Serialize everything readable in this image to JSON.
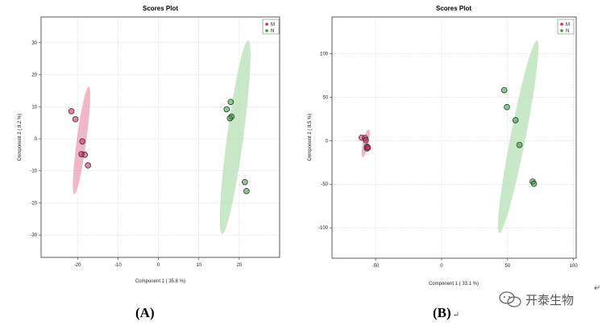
{
  "chart_data": [
    {
      "type": "scatter",
      "title": "Scores Plot",
      "xlabel": "Component 1 ( 35.8 %)",
      "ylabel": "Component 2 ( 8.2 %)",
      "xlim": [
        -29,
        30
      ],
      "ylim": [
        -37,
        38
      ],
      "xticks": [
        -20,
        -10,
        0,
        10,
        20
      ],
      "yticks": [
        -30,
        -20,
        -10,
        0,
        10,
        20,
        30
      ],
      "grid": true,
      "legend": {
        "position": "top-right",
        "entries": [
          "M",
          "N"
        ]
      },
      "series": [
        {
          "name": "M",
          "color": "#d81b60",
          "ellipse_color": "#e8a0b3",
          "x": [
            -21.5,
            -20.5,
            -18.8,
            -19.0,
            -18.2,
            -17.4
          ],
          "y": [
            8.6,
            6.1,
            -0.8,
            -4.8,
            -5.0,
            -8.3
          ],
          "ellipse": {
            "center": [
              -19.0,
              -0.5
            ],
            "rx": 17.5,
            "ry": 1.3,
            "angle": -73.4
          }
        },
        {
          "name": "N",
          "color": "#2e9a3a",
          "ellipse_color": "#b5e0b5",
          "x": [
            17.9,
            16.9,
            18.1,
            17.7,
            21.4,
            21.8
          ],
          "y": [
            11.5,
            9.2,
            6.9,
            6.4,
            -13.5,
            -16.3
          ],
          "ellipse": {
            "center": [
              19.0,
              0.5
            ],
            "rx": 31.5,
            "ry": 2.2,
            "angle": -73.4
          }
        }
      ]
    },
    {
      "type": "scatter",
      "title": "Scores Plot",
      "xlabel": "Component 1 ( 33.1 %)",
      "ylabel": "Component 2 ( 8.5 %)",
      "xlim": [
        -83,
        102
      ],
      "ylim": [
        -135,
        142
      ],
      "xticks": [
        -50,
        0,
        50,
        100
      ],
      "yticks": [
        -100,
        -50,
        0,
        50,
        100
      ],
      "grid": true,
      "legend": {
        "position": "top-right",
        "entries": [
          "M",
          "N"
        ]
      },
      "series": [
        {
          "name": "M",
          "color": "#d81b60",
          "ellipse_color": "#e8a0b3",
          "x": [
            -60.5,
            -58.0,
            -57.5,
            -56.5,
            -56.5,
            -55.8
          ],
          "y": [
            3.5,
            3.0,
            0.5,
            -7.0,
            -9.0,
            -8.0
          ],
          "ellipse": {
            "center": [
              -57.5,
              -3.0
            ],
            "rx": 17,
            "ry": 2.5,
            "angle": -70
          }
        },
        {
          "name": "N",
          "color": "#2e9a3a",
          "ellipse_color": "#b5e0b5",
          "x": [
            47.5,
            49.5,
            56.0,
            59.0,
            69.0,
            70.0
          ],
          "y": [
            58.0,
            38.5,
            23.5,
            -5.0,
            -47.0,
            -49.5
          ],
          "ellipse": {
            "center": [
              58.0,
              4.5
            ],
            "rx": 118,
            "ry": 6.5,
            "angle": -70
          }
        }
      ]
    }
  ],
  "labels": {
    "a": "(A)",
    "b": "(B)"
  },
  "watermark": "开泰生物"
}
